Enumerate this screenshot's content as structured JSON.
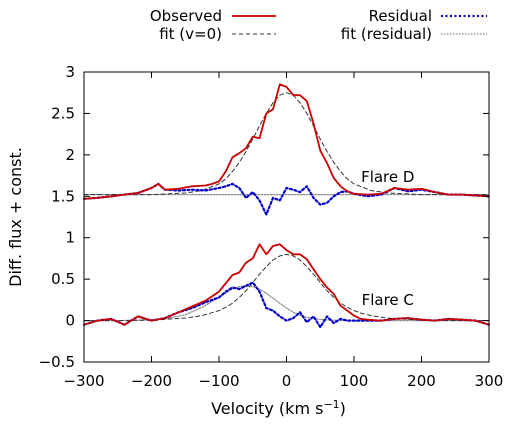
{
  "chart_data": {
    "type": "line",
    "title": "",
    "xlabel": "Velocity (km s",
    "xlabel_sup": "−1",
    "xlabel_end": ")",
    "ylabel": "Diff. flux + const.",
    "xlim": [
      -300,
      300
    ],
    "ylim": [
      -0.5,
      3
    ],
    "xticks": [
      -300,
      -200,
      -100,
      0,
      100,
      200,
      300
    ],
    "xtick_labels": [
      "−300",
      "−200",
      "−100",
      "0",
      "100",
      "200",
      "300"
    ],
    "yticks": [
      -0.5,
      0,
      0.5,
      1,
      1.5,
      2,
      2.5,
      3
    ],
    "ytick_labels": [
      "−0.5",
      "0",
      "0.5",
      "1",
      "1.5",
      "2",
      "2.5",
      "3"
    ],
    "grid": false,
    "legend_position": "top",
    "legend": [
      {
        "label": "Observed",
        "color": "#cc0000",
        "style": "solid"
      },
      {
        "label": "fit (v=0)",
        "color": "#333333",
        "style": "dashed"
      },
      {
        "label": "Residual",
        "color": "#0000cc",
        "style": "dotted"
      },
      {
        "label": "fit (residual)",
        "color": "#888888",
        "style": "dotted-fine"
      }
    ],
    "annotations": [
      {
        "text": "Flare D",
        "x": 150,
        "y": 1.67
      },
      {
        "text": "Flare C",
        "x": 150,
        "y": 0.19
      }
    ],
    "series": [
      {
        "name": "Observed",
        "panel": "Flare D",
        "color": "#cc0000",
        "x": [
          -300,
          -280,
          -260,
          -240,
          -220,
          -200,
          -190,
          -180,
          -160,
          -140,
          -120,
          -110,
          -100,
          -90,
          -80,
          -70,
          -60,
          -50,
          -40,
          -30,
          -20,
          -10,
          0,
          10,
          20,
          30,
          40,
          50,
          60,
          70,
          80,
          90,
          100,
          120,
          140,
          160,
          180,
          200,
          220,
          240,
          260,
          280,
          300
        ],
        "y": [
          1.47,
          1.48,
          1.5,
          1.52,
          1.54,
          1.6,
          1.65,
          1.58,
          1.59,
          1.62,
          1.63,
          1.65,
          1.68,
          1.8,
          1.97,
          2.02,
          2.08,
          2.22,
          2.2,
          2.5,
          2.55,
          2.85,
          2.82,
          2.72,
          2.72,
          2.65,
          2.38,
          2.05,
          1.9,
          1.72,
          1.62,
          1.56,
          1.53,
          1.52,
          1.53,
          1.6,
          1.58,
          1.59,
          1.55,
          1.52,
          1.52,
          1.51,
          1.5
        ]
      },
      {
        "name": "fit (v=0)",
        "panel": "Flare D",
        "color": "#333333",
        "x": [
          -300,
          -250,
          -200,
          -175,
          -150,
          -125,
          -100,
          -90,
          -80,
          -70,
          -60,
          -50,
          -40,
          -30,
          -20,
          -10,
          0,
          10,
          20,
          30,
          40,
          50,
          60,
          70,
          80,
          90,
          100,
          125,
          150,
          175,
          200,
          250,
          300
        ],
        "y": [
          1.52,
          1.52,
          1.52,
          1.53,
          1.54,
          1.57,
          1.65,
          1.71,
          1.8,
          1.91,
          2.04,
          2.19,
          2.35,
          2.5,
          2.63,
          2.72,
          2.75,
          2.72,
          2.63,
          2.5,
          2.35,
          2.19,
          2.04,
          1.91,
          1.8,
          1.71,
          1.65,
          1.57,
          1.54,
          1.53,
          1.52,
          1.52,
          1.52
        ]
      },
      {
        "name": "Residual",
        "panel": "Flare D",
        "color": "#0000cc",
        "x": [
          -300,
          -280,
          -260,
          -240,
          -220,
          -200,
          -190,
          -180,
          -160,
          -140,
          -120,
          -100,
          -90,
          -80,
          -70,
          -60,
          -50,
          -40,
          -30,
          -20,
          -10,
          0,
          10,
          20,
          30,
          40,
          50,
          60,
          70,
          80,
          90,
          100,
          120,
          140,
          160,
          180,
          200,
          220,
          240,
          260,
          280,
          300
        ],
        "y": [
          1.47,
          1.48,
          1.5,
          1.52,
          1.54,
          1.6,
          1.65,
          1.58,
          1.57,
          1.58,
          1.57,
          1.6,
          1.62,
          1.65,
          1.6,
          1.48,
          1.55,
          1.45,
          1.28,
          1.48,
          1.45,
          1.6,
          1.58,
          1.55,
          1.62,
          1.48,
          1.4,
          1.42,
          1.5,
          1.55,
          1.56,
          1.53,
          1.5,
          1.52,
          1.6,
          1.56,
          1.58,
          1.55,
          1.52,
          1.52,
          1.51,
          1.5
        ]
      },
      {
        "name": "fit (residual)",
        "panel": "Flare D",
        "color": "#888888",
        "x": [
          -300,
          300
        ],
        "y": [
          1.52,
          1.52
        ]
      },
      {
        "name": "Observed",
        "panel": "Flare C",
        "color": "#cc0000",
        "x": [
          -300,
          -280,
          -260,
          -240,
          -220,
          -200,
          -180,
          -160,
          -140,
          -120,
          -100,
          -80,
          -70,
          -60,
          -50,
          -40,
          -30,
          -20,
          -10,
          0,
          10,
          20,
          30,
          40,
          50,
          60,
          70,
          80,
          90,
          100,
          110,
          120,
          140,
          160,
          180,
          200,
          220,
          240,
          260,
          280,
          300
        ],
        "y": [
          -0.05,
          0.0,
          0.02,
          -0.05,
          0.05,
          0.0,
          0.03,
          0.1,
          0.17,
          0.24,
          0.35,
          0.55,
          0.58,
          0.7,
          0.75,
          0.92,
          0.8,
          0.9,
          0.92,
          0.85,
          0.8,
          0.8,
          0.74,
          0.62,
          0.5,
          0.4,
          0.32,
          0.18,
          0.12,
          0.06,
          0.02,
          0.01,
          0.0,
          0.02,
          0.03,
          0.01,
          0.0,
          0.02,
          0.01,
          0.0,
          -0.05
        ]
      },
      {
        "name": "fit (v=0)",
        "panel": "Flare C",
        "color": "#333333",
        "x": [
          -300,
          -250,
          -200,
          -150,
          -125,
          -100,
          -90,
          -80,
          -70,
          -60,
          -50,
          -40,
          -30,
          -20,
          -10,
          0,
          10,
          20,
          30,
          40,
          50,
          60,
          70,
          80,
          90,
          100,
          110,
          125,
          150,
          200,
          250,
          300
        ],
        "y": [
          0,
          0,
          0.005,
          0.03,
          0.06,
          0.12,
          0.16,
          0.21,
          0.28,
          0.36,
          0.46,
          0.56,
          0.65,
          0.73,
          0.78,
          0.8,
          0.78,
          0.73,
          0.65,
          0.56,
          0.46,
          0.36,
          0.28,
          0.21,
          0.16,
          0.12,
          0.09,
          0.06,
          0.03,
          0.005,
          0,
          0
        ]
      },
      {
        "name": "Residual",
        "panel": "Flare C",
        "color": "#0000cc",
        "x": [
          -300,
          -280,
          -260,
          -240,
          -220,
          -200,
          -180,
          -160,
          -140,
          -120,
          -100,
          -90,
          -80,
          -70,
          -60,
          -50,
          -40,
          -30,
          -20,
          -10,
          0,
          10,
          20,
          30,
          40,
          50,
          60,
          70,
          80,
          90,
          100,
          120,
          140,
          160,
          180,
          200,
          220,
          240,
          260,
          280,
          300
        ],
        "y": [
          -0.05,
          0.0,
          0.02,
          -0.05,
          0.05,
          0.0,
          0.03,
          0.1,
          0.15,
          0.22,
          0.28,
          0.35,
          0.4,
          0.38,
          0.42,
          0.46,
          0.35,
          0.15,
          0.12,
          0.05,
          0.0,
          0.03,
          0.1,
          -0.02,
          0.05,
          -0.08,
          0.05,
          -0.03,
          0.02,
          0.0,
          0.0,
          0.0,
          0.0,
          0.02,
          0.03,
          0.01,
          0.0,
          0.02,
          0.01,
          0.0,
          -0.05
        ]
      },
      {
        "name": "fit (residual)",
        "panel": "Flare C",
        "color": "#888888",
        "x": [
          -300,
          -250,
          -200,
          -175,
          -150,
          -125,
          -100,
          -90,
          -80,
          -70,
          -60,
          -50,
          -40,
          -30,
          -20,
          -10,
          0,
          10,
          20,
          30,
          40,
          50,
          60,
          70,
          80,
          90,
          100,
          125,
          150,
          200,
          250,
          300
        ],
        "y": [
          0,
          0,
          0.01,
          0.03,
          0.07,
          0.16,
          0.28,
          0.33,
          0.38,
          0.41,
          0.42,
          0.41,
          0.38,
          0.33,
          0.27,
          0.21,
          0.15,
          0.1,
          0.065,
          0.04,
          0.025,
          0.015,
          0.008,
          0.004,
          0.002,
          0.001,
          0,
          0,
          0,
          0,
          0,
          0
        ]
      }
    ]
  }
}
